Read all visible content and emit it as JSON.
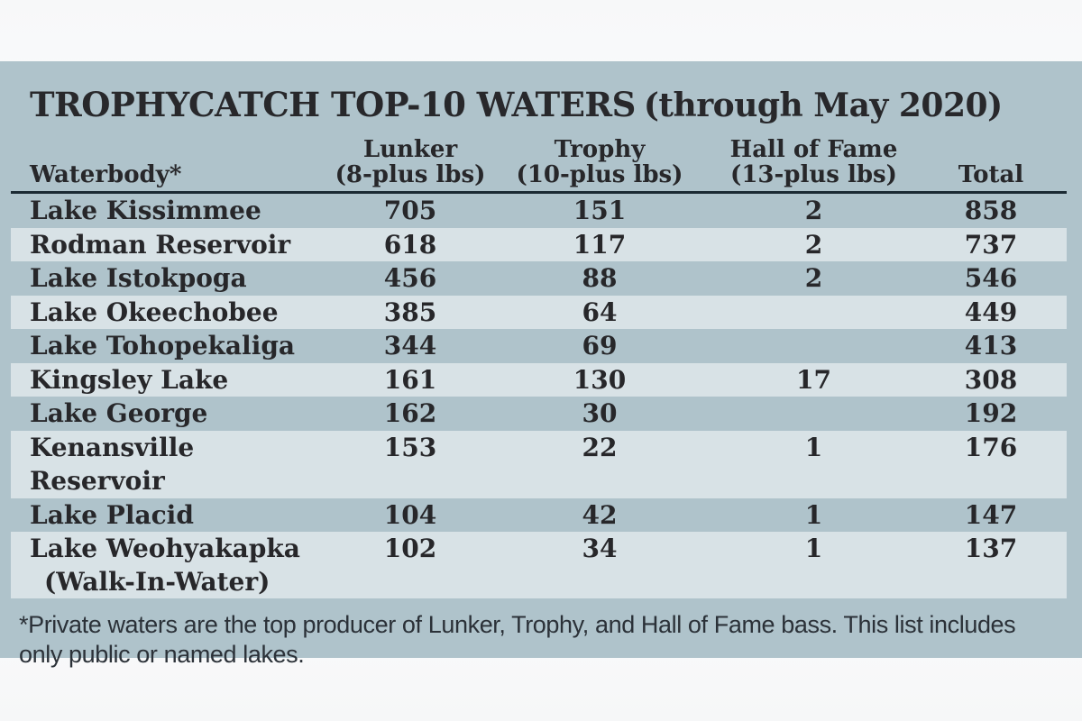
{
  "title": {
    "main": "TROPHYCATCH TOP-10 WATERS",
    "qualifier": "(through May 2020)"
  },
  "header": {
    "waterbody": "Waterbody*",
    "lunker_line1": "Lunker",
    "lunker_line2": "(8-plus lbs)",
    "trophy_line1": "Trophy",
    "trophy_line2": "(10-plus lbs)",
    "hof_line1": "Hall of Fame",
    "hof_line2": "(13-plus lbs)",
    "total": "Total"
  },
  "rows": [
    {
      "name": "Lake Kissimmee",
      "name2": "",
      "lunker": "705",
      "trophy": "151",
      "hof": "2",
      "total": "858"
    },
    {
      "name": "Rodman Reservoir",
      "name2": "",
      "lunker": "618",
      "trophy": "117",
      "hof": "2",
      "total": "737"
    },
    {
      "name": "Lake Istokpoga",
      "name2": "",
      "lunker": "456",
      "trophy": "88",
      "hof": "2",
      "total": "546"
    },
    {
      "name": "Lake Okeechobee",
      "name2": "",
      "lunker": "385",
      "trophy": "64",
      "hof": "",
      "total": "449"
    },
    {
      "name": "Lake Tohopekaliga",
      "name2": "",
      "lunker": "344",
      "trophy": "69",
      "hof": "",
      "total": "413"
    },
    {
      "name": "Kingsley Lake",
      "name2": "",
      "lunker": "161",
      "trophy": "130",
      "hof": "17",
      "total": "308"
    },
    {
      "name": "Lake George",
      "name2": "",
      "lunker": "162",
      "trophy": "30",
      "hof": "",
      "total": "192"
    },
    {
      "name": "Kenansville Reservoir",
      "name2": "",
      "lunker": "153",
      "trophy": "22",
      "hof": "1",
      "total": "176"
    },
    {
      "name": "Lake Placid",
      "name2": "",
      "lunker": "104",
      "trophy": "42",
      "hof": "1",
      "total": "147"
    },
    {
      "name": "Lake Weohyakapka",
      "name2": "(Walk-In-Water)",
      "lunker": "102",
      "trophy": "34",
      "hof": "1",
      "total": "137"
    }
  ],
  "footnote": "*Private waters are the top producer of Lunker, Trophy, and Hall of Fame bass. This list includes only public or named lakes.",
  "colors": {
    "panel_bg": "#afc3cb",
    "row_stripe": "#d8e2e6",
    "header_rule": "#1b2a33",
    "text": "#27272a",
    "page_bg": "#ffffff"
  },
  "chart_data": {
    "type": "table",
    "title": "TROPHYCATCH TOP-10 WATERS (through May 2020)",
    "columns": [
      "Waterbody*",
      "Lunker (8-plus lbs)",
      "Trophy (10-plus lbs)",
      "Hall of Fame (13-plus lbs)",
      "Total"
    ],
    "rows": [
      [
        "Lake Kissimmee",
        705,
        151,
        2,
        858
      ],
      [
        "Rodman Reservoir",
        618,
        117,
        2,
        737
      ],
      [
        "Lake Istokpoga",
        456,
        88,
        2,
        546
      ],
      [
        "Lake Okeechobee",
        385,
        64,
        null,
        449
      ],
      [
        "Lake Tohopekaliga",
        344,
        69,
        null,
        413
      ],
      [
        "Kingsley Lake",
        161,
        130,
        17,
        308
      ],
      [
        "Lake George",
        162,
        30,
        null,
        192
      ],
      [
        "Kenansville Reservoir",
        153,
        22,
        1,
        176
      ],
      [
        "Lake Placid",
        104,
        42,
        1,
        147
      ],
      [
        "Lake Weohyakapka (Walk-In-Water)",
        102,
        34,
        1,
        137
      ]
    ],
    "footnote": "*Private waters are the top producer of Lunker, Trophy, and Hall of Fame bass. This list includes only public or named lakes."
  }
}
